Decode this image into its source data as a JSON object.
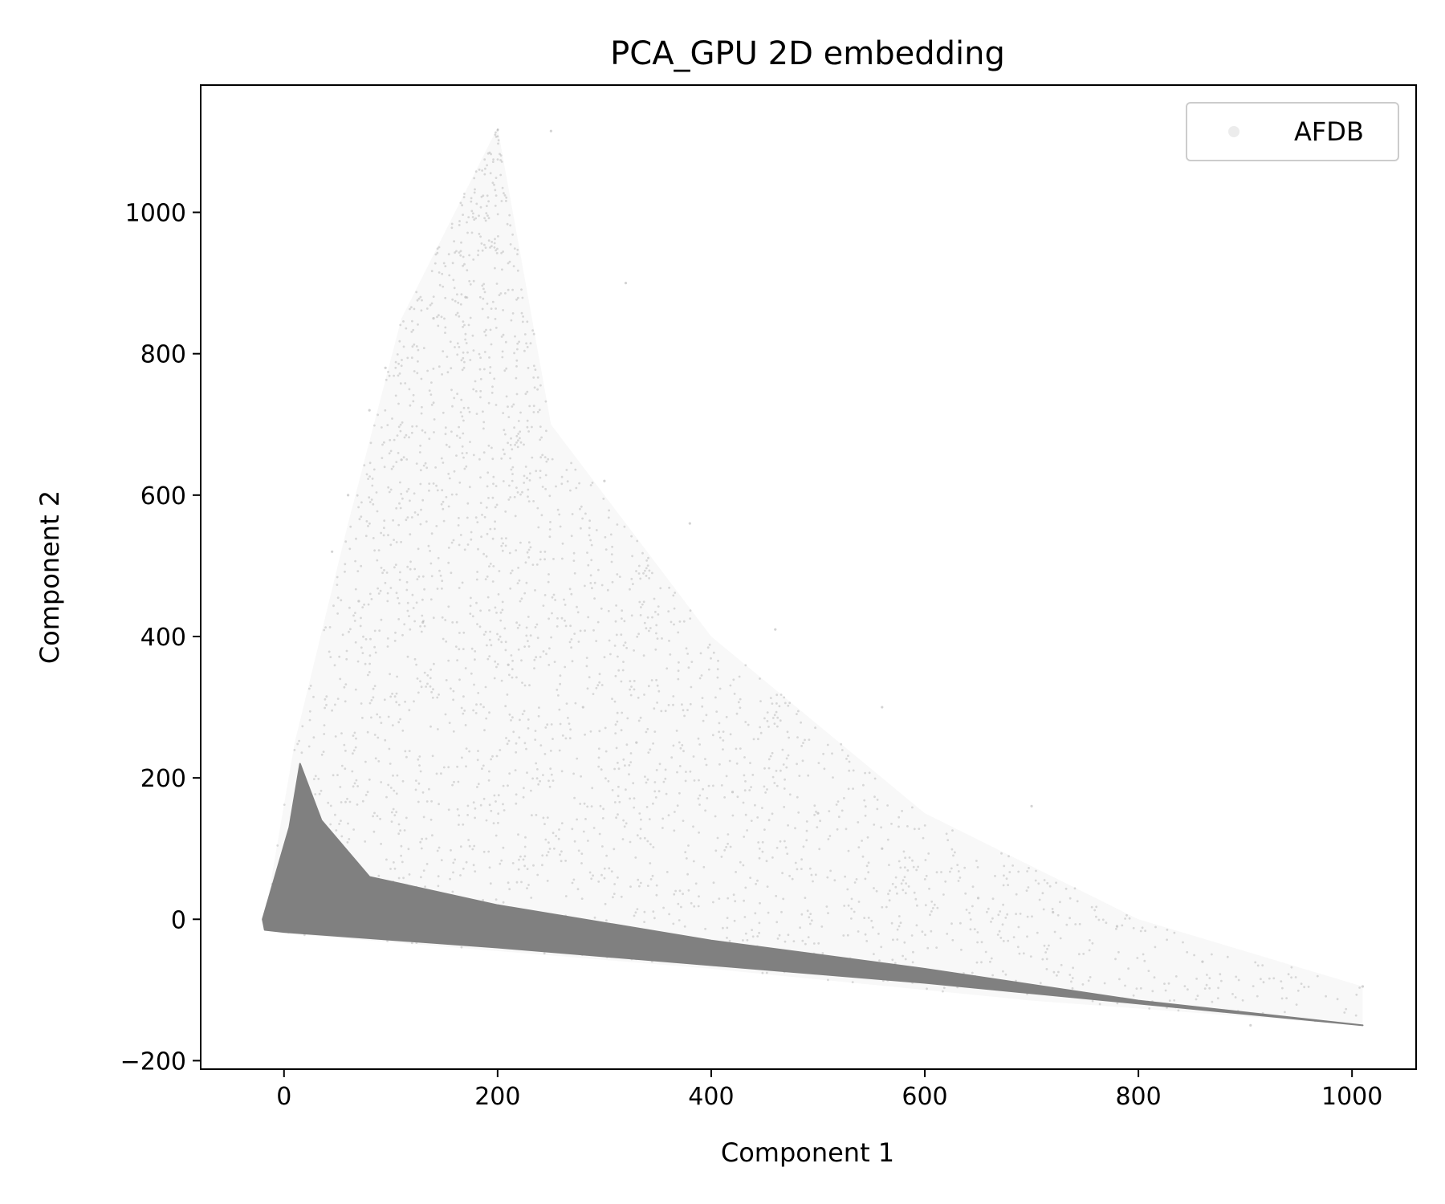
{
  "chart_data": {
    "type": "scatter",
    "title": "PCA_GPU 2D embedding",
    "xlabel": "Component 1",
    "ylabel": "Component 2",
    "xlim": [
      -78,
      1060
    ],
    "ylim": [
      -212,
      1180
    ],
    "xticks": [
      0,
      200,
      400,
      600,
      800,
      1000
    ],
    "yticks": [
      -200,
      0,
      200,
      400,
      600,
      800,
      1000
    ],
    "xtick_labels": [
      "0",
      "200",
      "400",
      "600",
      "800",
      "1000"
    ],
    "ytick_labels": [
      "−200",
      "0",
      "200",
      "400",
      "600",
      "800",
      "1000"
    ],
    "grid": false,
    "legend_position": "top-right",
    "series": [
      {
        "name": "AFDB",
        "color": "#808080",
        "dense_region": [
          [
            -18,
            -15
          ],
          [
            -20,
            0
          ],
          [
            5,
            130
          ],
          [
            15,
            220
          ],
          [
            35,
            140
          ],
          [
            80,
            60
          ],
          [
            200,
            20
          ],
          [
            400,
            -30
          ],
          [
            600,
            -70
          ],
          [
            800,
            -115
          ],
          [
            1010,
            -150
          ],
          [
            600,
            -90
          ],
          [
            400,
            -65
          ],
          [
            200,
            -40
          ],
          [
            0,
            -18
          ]
        ],
        "sparse_envelope": [
          [
            -20,
            -15
          ],
          [
            10,
            250
          ],
          [
            60,
            560
          ],
          [
            110,
            850
          ],
          [
            200,
            1120
          ],
          [
            250,
            700
          ],
          [
            400,
            400
          ],
          [
            600,
            150
          ],
          [
            800,
            0
          ],
          [
            1010,
            -95
          ],
          [
            1010,
            -150
          ],
          [
            700,
            -115
          ],
          [
            400,
            -70
          ],
          [
            0,
            -20
          ]
        ],
        "points_sample": [
          [
            80,
            720
          ],
          [
            95,
            780
          ],
          [
            140,
            850
          ],
          [
            170,
            880
          ],
          [
            250,
            1115
          ],
          [
            320,
            900
          ],
          [
            110,
            650
          ],
          [
            60,
            600
          ],
          [
            45,
            520
          ],
          [
            70,
            450
          ],
          [
            130,
            420
          ],
          [
            210,
            360
          ],
          [
            280,
            300
          ],
          [
            330,
            250
          ],
          [
            420,
            180
          ],
          [
            500,
            150
          ],
          [
            560,
            100
          ],
          [
            650,
            30
          ],
          [
            720,
            10
          ],
          [
            780,
            -10
          ],
          [
            860,
            -60
          ],
          [
            905,
            -150
          ],
          [
            1010,
            -95
          ],
          [
            300,
            620
          ],
          [
            380,
            560
          ],
          [
            460,
            410
          ],
          [
            560,
            300
          ],
          [
            700,
            160
          ]
        ]
      }
    ]
  }
}
